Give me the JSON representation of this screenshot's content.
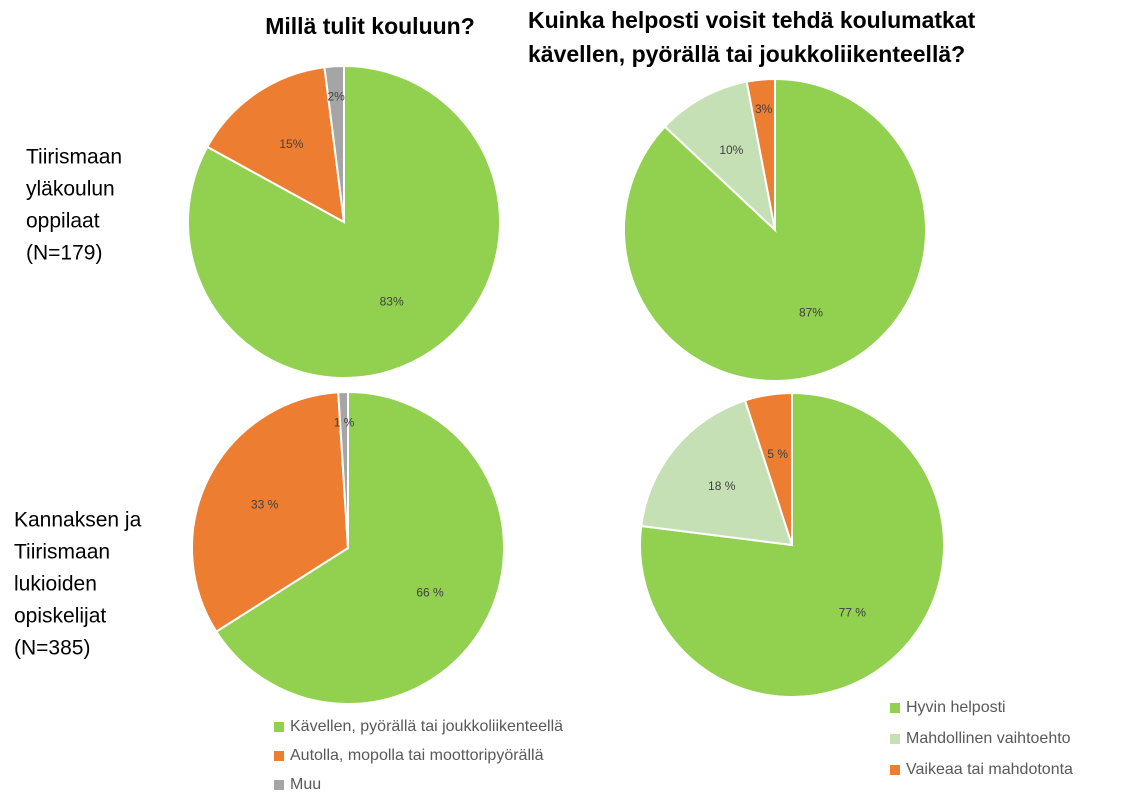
{
  "column_titles": [
    [
      "Millä tulit kouluun?"
    ],
    [
      "Kuinka helposti voisit tehdä koulumatkat",
      "kävellen, pyörällä tai joukkoliikenteellä?"
    ]
  ],
  "row_labels": [
    [
      "Tiirismaan",
      "yläkoulun",
      "oppilaat",
      "(N=179)"
    ],
    [
      "Kannaksen ja",
      "Tiirismaan",
      "lukioiden",
      "opiskelijat",
      "(N=385)"
    ]
  ],
  "chart_data": [
    {
      "type": "pie",
      "categories": [
        "Kävellen, pyörällä tai joukkoliikenteellä",
        "Autolla, mopolla tai moottoripyörällä",
        "Muu"
      ],
      "values": [
        83,
        15,
        2
      ],
      "value_labels": [
        "83%",
        "15%",
        "2%"
      ],
      "colors": [
        "#92d050",
        "#ed7d31",
        "#a5a5a5"
      ]
    },
    {
      "type": "pie",
      "categories": [
        "Hyvin helposti",
        "Mahdollinen vaihtoehto",
        "Vaikeaa tai mahdotonta"
      ],
      "values": [
        87,
        10,
        3
      ],
      "value_labels": [
        "87%",
        "10%",
        "3%"
      ],
      "colors": [
        "#92d050",
        "#c5e0b4",
        "#ed7d31"
      ]
    },
    {
      "type": "pie",
      "categories": [
        "Kävellen, pyörällä tai joukkoliikenteellä",
        "Autolla, mopolla tai moottoripyörällä",
        "Muu"
      ],
      "values": [
        66,
        33,
        1
      ],
      "value_labels": [
        "66 %",
        "33 %",
        "1 %"
      ],
      "colors": [
        "#92d050",
        "#ed7d31",
        "#a5a5a5"
      ]
    },
    {
      "type": "pie",
      "categories": [
        "Hyvin helposti",
        "Mahdollinen vaihtoehto",
        "Vaikeaa tai mahdotonta"
      ],
      "values": [
        77,
        18,
        5
      ],
      "value_labels": [
        "77 %",
        "18 %",
        "5 %"
      ],
      "colors": [
        "#92d050",
        "#c5e0b4",
        "#ed7d31"
      ]
    }
  ]
}
